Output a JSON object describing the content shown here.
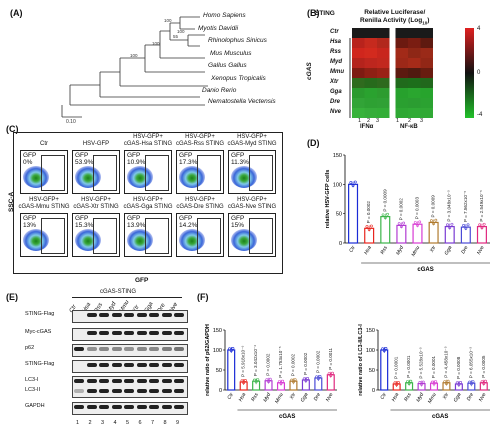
{
  "panels": {
    "A": "(A)",
    "B": "(B)",
    "C": "(C)",
    "D": "(D)",
    "E": "(E)",
    "F": "(F)"
  },
  "tree": {
    "species": [
      "Homo Sapiens",
      "Myotis Davidii",
      "Rhinolophus Sinicus",
      "Mus Musculus",
      "Gallus Gallus",
      "Xenopus Tropicalis",
      "Danio Rerio",
      "Nematostella Vectensis"
    ],
    "bootstrap": [
      "100",
      "100",
      "55",
      "100",
      "100"
    ],
    "scale": "0.10"
  },
  "heatmap": {
    "title_line1": "Relative Luciferase/",
    "title_line2": "Renilla Activity (Log",
    "title_sub": "10",
    "title_end": ")",
    "row_header": "STING",
    "group_label": "cGAS",
    "rows": [
      "Ctr",
      "Hsa",
      "Rss",
      "Myd",
      "Mmu",
      "Xtr",
      "Gga",
      "Dre",
      "Nve"
    ],
    "col_groups": [
      "IFNα",
      "NF-κB"
    ],
    "col_reps": [
      "1",
      "2",
      "3",
      "1",
      "2",
      "3"
    ],
    "scale_ticks": [
      "4",
      "0",
      "-4"
    ],
    "colors": [
      [
        "#1a1a1a",
        "#1a1a1a",
        "#1a1a1a",
        "#1a1a1a",
        "#1a1a1a",
        "#1a1a1a"
      ],
      [
        "#b8231c",
        "#c62a1e",
        "#b2281c",
        "#6c1a10",
        "#7a1d12",
        "#5e1a10"
      ],
      [
        "#d0261d",
        "#d32a1e",
        "#c8261d",
        "#a22a18",
        "#8e2716",
        "#9a2a18"
      ],
      [
        "#b4231c",
        "#bd261e",
        "#c2281e",
        "#9d2818",
        "#a62b19",
        "#922716"
      ],
      [
        "#7e1b12",
        "#8e2014",
        "#9a2216",
        "#5c1a10",
        "#501a10",
        "#681c10"
      ],
      [
        "#2f6b1e",
        "#276a1c",
        "#2e6a1e",
        "#206a1c",
        "#1d6e1b",
        "#21681c"
      ],
      [
        "#2a9a2e",
        "#2aa22f",
        "#2d9c2f",
        "#27a12d",
        "#2aa62f",
        "#27a42d"
      ],
      [
        "#32a437",
        "#2ea133",
        "#30a135",
        "#2aa030",
        "#2b9d31",
        "#2ba231"
      ],
      [
        "#38b23b",
        "#36ad3a",
        "#33ae37",
        "#2fa834",
        "#30ab35",
        "#31a935"
      ]
    ]
  },
  "facs": {
    "y_axis": "SSC-A",
    "x_axis": "GFP",
    "gate_label": "GFP",
    "row1": [
      {
        "title": [
          "Ctr"
        ],
        "pct": "0%"
      },
      {
        "title": [
          "HSV-GFP"
        ],
        "pct": "53.9%"
      },
      {
        "title": [
          "HSV-GFP+",
          "cGAS-Hsa STING"
        ],
        "pct": "10.9%"
      },
      {
        "title": [
          "HSV-GFP+",
          "cGAS-Rss STING"
        ],
        "pct": "17.3%"
      },
      {
        "title": [
          "HSV-GFP+",
          "cGAS-Myd STING"
        ],
        "pct": "11.3%"
      }
    ],
    "row2": [
      {
        "title": [
          "HSV-GFP+",
          "cGAS-Mmu STING"
        ],
        "pct": "13%"
      },
      {
        "title": [
          "HSV-GFP+",
          "cGAS-Xtr STING"
        ],
        "pct": "15.3%"
      },
      {
        "title": [
          "HSV-GFP+",
          "cGAS-Gga STING"
        ],
        "pct": "13.9%"
      },
      {
        "title": [
          "HSV-GFP+",
          "cGAS-Dre STING"
        ],
        "pct": "14.2%"
      },
      {
        "title": [
          "HSV-GFP+",
          "cGAS-Nve STING"
        ],
        "pct": "15%"
      }
    ]
  },
  "blot": {
    "header": "cGAS-STING",
    "lanes": [
      "Ctr",
      "Hsa",
      "Rss",
      "Myd",
      "Mmu",
      "Xtr",
      "Gga",
      "Dre",
      "Nve"
    ],
    "lane_numbers": [
      "1",
      "2",
      "3",
      "4",
      "5",
      "6",
      "7",
      "8",
      "9"
    ],
    "rows": [
      "STING-Flag",
      "Myc-cGAS",
      "p62",
      "STING-Flag",
      "LC3-I",
      "LC3-II",
      "GAPDH"
    ]
  },
  "chart_data": [
    {
      "type": "bar",
      "panel": "D",
      "ylabel": "relative HSV-GFP cells",
      "xlabel": "cGAS",
      "categories": [
        "Ctr",
        "Hsa",
        "Rss",
        "Myd",
        "Mmu",
        "Xtr",
        "Gga",
        "Dre",
        "Nve"
      ],
      "values": [
        100,
        25,
        45,
        30,
        32,
        35,
        28,
        27,
        28
      ],
      "ylim": [
        0,
        150
      ],
      "yticks": [
        0,
        50,
        100,
        150
      ],
      "pvalues": [
        "",
        "P = 0.0002",
        "P = 0.0009",
        "P = 0.0002",
        "P = 0.0003",
        "P = 0.0009",
        "P = 3.048x10⁻⁵",
        "P = 7.562x10⁻⁵",
        "P = 2.549x10⁻⁵"
      ],
      "colors": [
        "#1a2bd6",
        "#e8251f",
        "#3cb54a",
        "#b23bd3",
        "#d83bd3",
        "#b07a2e",
        "#7a3bd3",
        "#4a4ad6",
        "#e0287f"
      ]
    },
    {
      "type": "bar",
      "panel": "F-left",
      "ylabel": "relative ratio of p62/GAPDH",
      "xlabel": "cGAS",
      "categories": [
        "Ctr",
        "Hsa",
        "Rss",
        "Myd",
        "Mmu",
        "Xtr",
        "Gga",
        "Dre",
        "Nve"
      ],
      "values": [
        100,
        20,
        22,
        23,
        18,
        22,
        25,
        30,
        38
      ],
      "ylim": [
        0,
        150
      ],
      "yticks": [
        0,
        50,
        100,
        150
      ],
      "pvalues": [
        "",
        "P = 5.918x10⁻⁶",
        "P = 3.042x10⁻⁶",
        "P = 0.0002",
        "P = 1.753x10⁻⁵",
        "P = 0.0002",
        "P = 0.0002",
        "P = 0.0002",
        "P = 0.0011"
      ],
      "colors": [
        "#1a2bd6",
        "#e8251f",
        "#3cb54a",
        "#b23bd3",
        "#d83bd3",
        "#b07a2e",
        "#7a3bd3",
        "#4a4ad6",
        "#e0287f"
      ]
    },
    {
      "type": "bar",
      "panel": "F-right",
      "ylabel": "relative ratio of LC3-II/LC3-I",
      "xlabel": "cGAS",
      "categories": [
        "Ctr",
        "Hsa",
        "Rss",
        "Myd",
        "Mmu",
        "Xtr",
        "Gga",
        "Dre",
        "Nve"
      ],
      "values": [
        100,
        15,
        18,
        16,
        17,
        18,
        15,
        17,
        18
      ],
      "ylim": [
        0,
        150
      ],
      "yticks": [
        0,
        50,
        100,
        150
      ],
      "pvalues": [
        "",
        "P = 0.0001",
        "P = 0.0001",
        "P = 5.528x10⁻⁵",
        "P = 0.0001",
        "P = 4.458x10⁻⁵",
        "P = 0.0008",
        "P = 6.055x10⁻⁵",
        "P = 0.0005"
      ],
      "colors": [
        "#1a2bd6",
        "#e8251f",
        "#3cb54a",
        "#b23bd3",
        "#d83bd3",
        "#b07a2e",
        "#7a3bd3",
        "#4a4ad6",
        "#e0287f"
      ]
    }
  ]
}
